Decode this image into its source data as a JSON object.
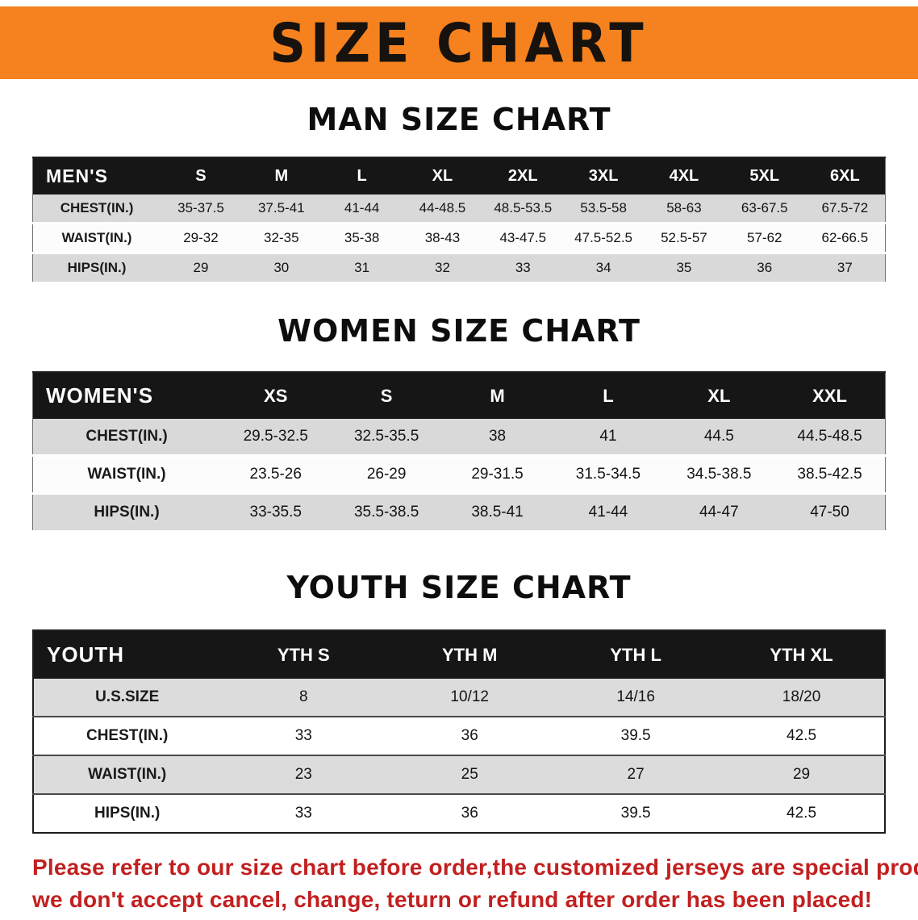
{
  "banner": {
    "title": "SIZE CHART",
    "bg_color": "#f5821f",
    "text_color": "#17120e"
  },
  "sections": [
    {
      "id": "men",
      "heading": "MAN SIZE CHART",
      "table": {
        "header": [
          "MEN'S",
          "S",
          "M",
          "L",
          "XL",
          "2XL",
          "3XL",
          "4XL",
          "5XL",
          "6XL"
        ],
        "rows": [
          [
            "CHEST(IN.)",
            "35-37.5",
            "37.5-41",
            "41-44",
            "44-48.5",
            "48.5-53.5",
            "53.5-58",
            "58-63",
            "63-67.5",
            "67.5-72"
          ],
          [
            "WAIST(IN.)",
            "29-32",
            "32-35",
            "35-38",
            "38-43",
            "43-47.5",
            "47.5-52.5",
            "52.5-57",
            "57-62",
            "62-66.5"
          ],
          [
            "HIPS(IN.)",
            "29",
            "30",
            "31",
            "32",
            "33",
            "34",
            "35",
            "36",
            "37"
          ]
        ]
      }
    },
    {
      "id": "women",
      "heading": "WOMEN SIZE CHART",
      "table": {
        "header": [
          "WOMEN'S",
          "XS",
          "S",
          "M",
          "L",
          "XL",
          "XXL"
        ],
        "rows": [
          [
            "CHEST(IN.)",
            "29.5-32.5",
            "32.5-35.5",
            "38",
            "41",
            "44.5",
            "44.5-48.5"
          ],
          [
            "WAIST(IN.)",
            "23.5-26",
            "26-29",
            "29-31.5",
            "31.5-34.5",
            "34.5-38.5",
            "38.5-42.5"
          ],
          [
            "HIPS(IN.)",
            "33-35.5",
            "35.5-38.5",
            "38.5-41",
            "41-44",
            "44-47",
            "47-50"
          ]
        ]
      }
    },
    {
      "id": "youth",
      "heading": "YOUTH SIZE CHART",
      "table": {
        "header": [
          "YOUTH",
          "YTH S",
          "YTH M",
          "YTH L",
          "YTH XL"
        ],
        "rows": [
          [
            "U.S.SIZE",
            "8",
            "10/12",
            "14/16",
            "18/20"
          ],
          [
            "CHEST(IN.)",
            "33",
            "36",
            "39.5",
            "42.5"
          ],
          [
            "WAIST(IN.)",
            "23",
            "25",
            "27",
            "29"
          ],
          [
            "HIPS(IN.)",
            "33",
            "36",
            "39.5",
            "42.5"
          ]
        ]
      }
    }
  ],
  "disclaimer": {
    "line1": "Please refer to our size chart before order,the customized jerseys are special products,",
    "line2": "we don't accept cancel, change, teturn or refund after order has been placed!",
    "color": "#c22020"
  }
}
